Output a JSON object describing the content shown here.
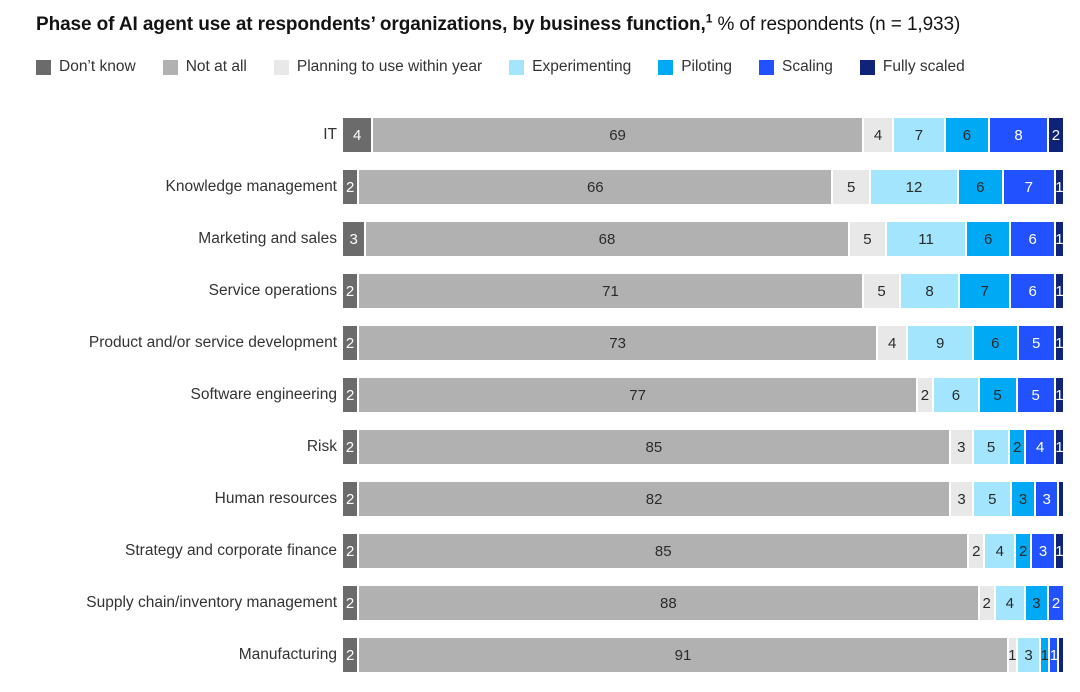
{
  "title": {
    "main": "Phase of AI agent use at respondents’ organizations, by business function,",
    "footnote_marker": "1",
    "suffix": " % of respondents (n = 1,933)"
  },
  "chart_data": {
    "type": "bar",
    "orientation": "horizontal",
    "stacked": true,
    "unit": "% of respondents",
    "sample_size": "1,933",
    "value_range": [
      0,
      100
    ],
    "grid": false,
    "legend_position": "top",
    "categories": [
      "IT",
      "Knowledge management",
      "Marketing and sales",
      "Service operations",
      "Product and/or service development",
      "Software engineering",
      "Risk",
      "Human resources",
      "Strategy and corporate finance",
      "Supply chain/inventory management",
      "Manufacturing"
    ],
    "series": [
      {
        "name": "Don’t know",
        "color": "#6b6b6b",
        "label_color": "#ffffff",
        "values": [
          4,
          2,
          3,
          2,
          2,
          2,
          2,
          2,
          2,
          2,
          2
        ]
      },
      {
        "name": "Not at all",
        "color": "#b1b1b1",
        "label_color": "#2b2b2b",
        "values": [
          69,
          66,
          68,
          71,
          73,
          77,
          85,
          82,
          85,
          88,
          91
        ]
      },
      {
        "name": "Planning to use within year",
        "color": "#e8e8e8",
        "label_color": "#2b2b2b",
        "values": [
          4,
          5,
          5,
          5,
          4,
          2,
          3,
          3,
          2,
          2,
          1
        ]
      },
      {
        "name": "Experimenting",
        "color": "#a3e5fc",
        "label_color": "#2b2b2b",
        "values": [
          7,
          12,
          11,
          8,
          9,
          6,
          5,
          5,
          4,
          4,
          3
        ]
      },
      {
        "name": "Piloting",
        "color": "#00a9f4",
        "label_color": "#2b2b2b",
        "values": [
          6,
          6,
          6,
          7,
          6,
          5,
          2,
          3,
          2,
          3,
          1
        ]
      },
      {
        "name": "Scaling",
        "color": "#2251ff",
        "label_color": "#ffffff",
        "values": [
          8,
          7,
          6,
          6,
          5,
          5,
          4,
          3,
          3,
          2,
          1
        ]
      },
      {
        "name": "Fully scaled",
        "color": "#0f2479",
        "label_color": "#ffffff",
        "values": [
          2,
          1,
          1,
          1,
          1,
          1,
          1,
          0.5,
          1,
          0,
          0.5
        ]
      }
    ]
  }
}
